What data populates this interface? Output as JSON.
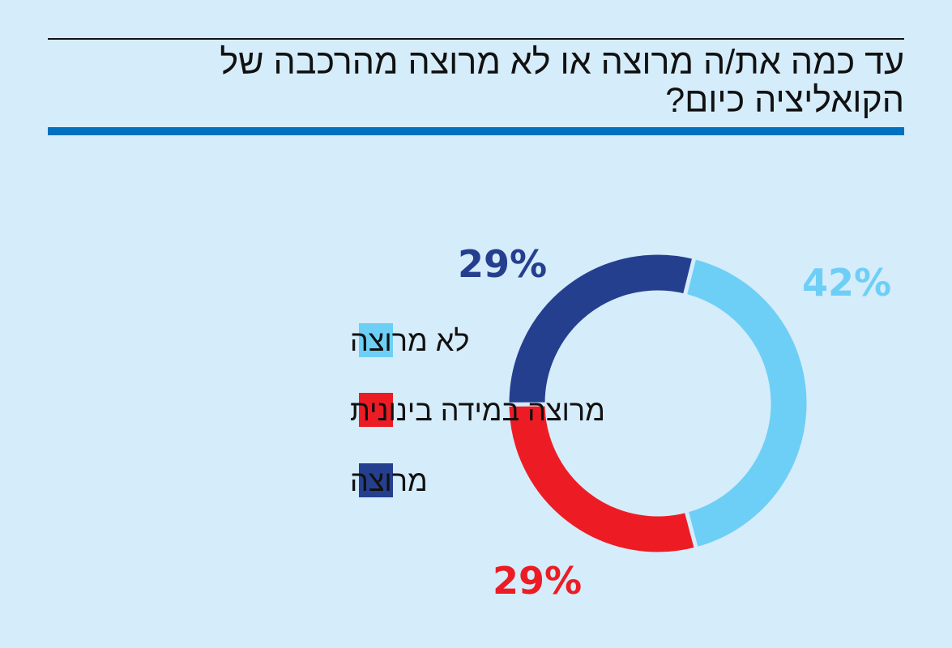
{
  "title": {
    "line1": "עד כמה את/ה מרוצה או לא מרוצה מהרכבה של",
    "line2": "הקואליציה כיום?"
  },
  "chart_data": {
    "type": "pie",
    "subtype": "donut",
    "title": "עד כמה את/ה מרוצה או לא מרוצה מהרכבה של הקואליציה כיום?",
    "categories": [
      "לא מרוצה",
      "מרוצה במידה בינונית",
      "מרוצה"
    ],
    "values": [
      42,
      29,
      29
    ],
    "value_labels": [
      "42%",
      "29%",
      "29%"
    ],
    "colors": [
      "#6ecff6",
      "#ed1c24",
      "#253f8f"
    ],
    "legend_position": "left"
  },
  "colors": {
    "background": "#d5ecfa",
    "accent_rule": "#0070c0",
    "title_text": "#111111"
  }
}
